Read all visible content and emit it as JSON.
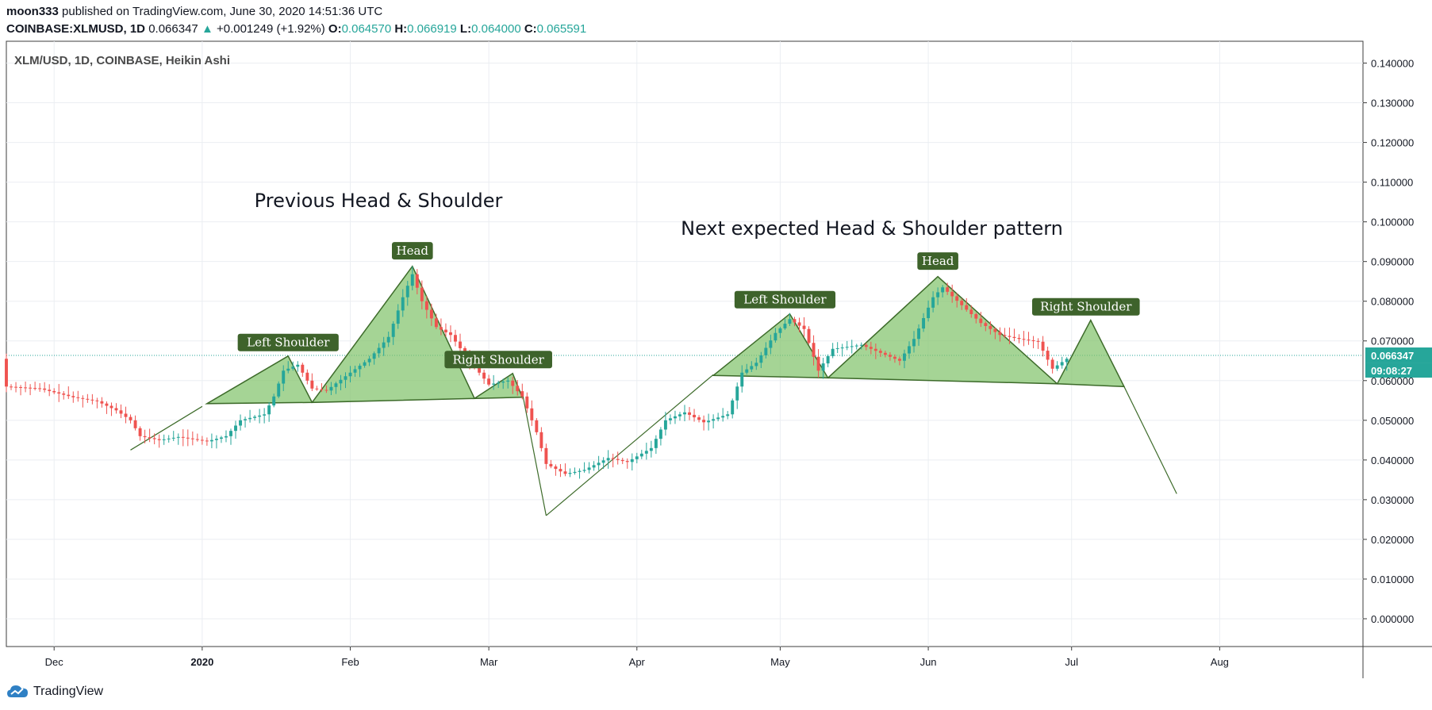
{
  "header": {
    "author": "moon333",
    "published_text": "published on TradingView.com, June 30, 2020 14:51:36 UTC",
    "symbol": "COINBASE:XLMUSD, 1D",
    "last": "0.066347",
    "change": "+0.001249 (+1.92%)",
    "o_label": "O:",
    "o": "0.064570",
    "h_label": "H:",
    "h": "0.066919",
    "l_label": "L:",
    "l": "0.064000",
    "c_label": "C:",
    "c": "0.065591"
  },
  "legend_title": "XLM/USD, 1D, COINBASE, Heikin Ashi",
  "annotations": {
    "prev_title": "Previous Head & Shoulder",
    "next_title": "Next expected Head & Shoulder pattern",
    "labels": [
      {
        "text": "Left Shoulder",
        "date": "2020-01-19",
        "price": 0.0696
      },
      {
        "text": "Head",
        "date": "2020-02-14",
        "price": 0.0927
      },
      {
        "text": "Right Shoulder",
        "date": "2020-03-03",
        "price": 0.0653
      },
      {
        "text": "Left Shoulder",
        "date": "2020-05-02",
        "price": 0.0804
      },
      {
        "text": "Head",
        "date": "2020-06-03",
        "price": 0.0901
      },
      {
        "text": "Right Shoulder",
        "date": "2020-07-04",
        "price": 0.0786
      }
    ]
  },
  "price_tag": "0.066347",
  "countdown_tag": "09:08:27",
  "brand": "TradingView",
  "colors": {
    "up": "#26a69a",
    "down": "#ef5350",
    "pattern_fill": "#82c46c",
    "pattern_stroke": "#3d6b2a",
    "label_bg": "#3e632b",
    "price_tag_bg": "#26a69a"
  },
  "chart_data": {
    "type": "candlestick",
    "style": "Heikin Ashi",
    "ylim": [
      -0.007,
      0.1455
    ],
    "y_ticks": [
      {
        "v": 0.14,
        "t": "0.140000"
      },
      {
        "v": 0.13,
        "t": "0.130000"
      },
      {
        "v": 0.12,
        "t": "0.120000"
      },
      {
        "v": 0.11,
        "t": "0.110000"
      },
      {
        "v": 0.1,
        "t": "0.100000"
      },
      {
        "v": 0.09,
        "t": "0.090000"
      },
      {
        "v": 0.08,
        "t": "0.080000"
      },
      {
        "v": 0.07,
        "t": "0.070000"
      },
      {
        "v": 0.06,
        "t": "0.060000"
      },
      {
        "v": 0.05,
        "t": "0.050000"
      },
      {
        "v": 0.04,
        "t": "0.040000"
      },
      {
        "v": 0.03,
        "t": "0.030000"
      },
      {
        "v": 0.02,
        "t": "0.020000"
      },
      {
        "v": 0.01,
        "t": "0.010000"
      },
      {
        "v": 0.0,
        "t": "0.000000"
      }
    ],
    "x_range": [
      "2019-11-21",
      "2020-08-31"
    ],
    "x_ticks": [
      {
        "date": "2019-12-01",
        "t": "Dec",
        "bold": false
      },
      {
        "date": "2020-01-01",
        "t": "2020",
        "bold": true
      },
      {
        "date": "2020-02-01",
        "t": "Feb",
        "bold": false
      },
      {
        "date": "2020-03-01",
        "t": "Mar",
        "bold": false
      },
      {
        "date": "2020-04-01",
        "t": "Apr",
        "bold": false
      },
      {
        "date": "2020-05-01",
        "t": "May",
        "bold": false
      },
      {
        "date": "2020-06-01",
        "t": "Jun",
        "bold": false
      },
      {
        "date": "2020-07-01",
        "t": "Jul",
        "bold": false
      },
      {
        "date": "2020-08-01",
        "t": "Aug",
        "bold": false
      }
    ],
    "current_price": 0.066347,
    "candle_close_path": {
      "start_date": "2019-11-21",
      "end_date": "2020-06-30",
      "points": [
        [
          "2019-11-21",
          0.0585
        ],
        [
          "2019-11-28",
          0.058
        ],
        [
          "2019-12-05",
          0.0558
        ],
        [
          "2019-12-10",
          0.0548
        ],
        [
          "2019-12-14",
          0.0525
        ],
        [
          "2019-12-17",
          0.05
        ],
        [
          "2019-12-19",
          0.046
        ],
        [
          "2019-12-23",
          0.045
        ],
        [
          "2019-12-27",
          0.0458
        ],
        [
          "2020-01-02",
          0.0447
        ],
        [
          "2020-01-06",
          0.046
        ],
        [
          "2020-01-09",
          0.05
        ],
        [
          "2020-01-14",
          0.0515
        ],
        [
          "2020-01-16",
          0.056
        ],
        [
          "2020-01-18",
          0.0625
        ],
        [
          "2020-01-21",
          0.064
        ],
        [
          "2020-01-24",
          0.058
        ],
        [
          "2020-01-27",
          0.0575
        ],
        [
          "2020-02-01",
          0.062
        ],
        [
          "2020-02-05",
          0.0655
        ],
        [
          "2020-02-09",
          0.071
        ],
        [
          "2020-02-12",
          0.081
        ],
        [
          "2020-02-14",
          0.0868
        ],
        [
          "2020-02-16",
          0.08
        ],
        [
          "2020-02-19",
          0.0735
        ],
        [
          "2020-02-22",
          0.0715
        ],
        [
          "2020-02-25",
          0.0665
        ],
        [
          "2020-03-01",
          0.059
        ],
        [
          "2020-03-05",
          0.06
        ],
        [
          "2020-03-08",
          0.056
        ],
        [
          "2020-03-11",
          0.047
        ],
        [
          "2020-03-13",
          0.039
        ],
        [
          "2020-03-17",
          0.0365
        ],
        [
          "2020-03-21",
          0.0375
        ],
        [
          "2020-03-26",
          0.0405
        ],
        [
          "2020-03-30",
          0.0395
        ],
        [
          "2020-04-04",
          0.043
        ],
        [
          "2020-04-07",
          0.05
        ],
        [
          "2020-04-11",
          0.052
        ],
        [
          "2020-04-15",
          0.0495
        ],
        [
          "2020-04-20",
          0.0515
        ],
        [
          "2020-04-23",
          0.062
        ],
        [
          "2020-04-26",
          0.0645
        ],
        [
          "2020-04-30",
          0.072
        ],
        [
          "2020-05-03",
          0.0755
        ],
        [
          "2020-05-06",
          0.073
        ],
        [
          "2020-05-09",
          0.0625
        ],
        [
          "2020-05-12",
          0.068
        ],
        [
          "2020-05-18",
          0.069
        ],
        [
          "2020-05-22",
          0.067
        ],
        [
          "2020-05-26",
          0.065
        ],
        [
          "2020-05-29",
          0.0705
        ],
        [
          "2020-06-02",
          0.081
        ],
        [
          "2020-06-04",
          0.0835
        ],
        [
          "2020-06-08",
          0.079
        ],
        [
          "2020-06-12",
          0.0745
        ],
        [
          "2020-06-16",
          0.0715
        ],
        [
          "2020-06-20",
          0.0705
        ],
        [
          "2020-06-24",
          0.0698
        ],
        [
          "2020-06-27",
          0.063
        ],
        [
          "2020-06-30",
          0.0655
        ]
      ]
    },
    "drawings": [
      {
        "type": "line",
        "pts": [
          [
            "2019-12-17",
            0.0425
          ],
          [
            "2020-01-01",
            0.0535
          ]
        ]
      },
      {
        "type": "triangle",
        "pts": [
          [
            "2020-01-02",
            0.0542
          ],
          [
            "2020-01-19",
            0.0662
          ],
          [
            "2020-01-24",
            0.0545
          ]
        ]
      },
      {
        "type": "triangle",
        "pts": [
          [
            "2020-01-24",
            0.0545
          ],
          [
            "2020-02-14",
            0.0888
          ],
          [
            "2020-02-27",
            0.0555
          ]
        ]
      },
      {
        "type": "triangle",
        "pts": [
          [
            "2020-02-27",
            0.0555
          ],
          [
            "2020-03-06",
            0.0618
          ],
          [
            "2020-03-08",
            0.0558
          ]
        ]
      },
      {
        "type": "line",
        "pts": [
          [
            "2020-03-08",
            0.057
          ],
          [
            "2020-03-13",
            0.026
          ]
        ]
      },
      {
        "type": "line",
        "pts": [
          [
            "2020-03-13",
            0.026
          ],
          [
            "2020-04-17",
            0.0615
          ]
        ]
      },
      {
        "type": "triangle",
        "pts": [
          [
            "2020-04-17",
            0.0613
          ],
          [
            "2020-05-03",
            0.0768
          ],
          [
            "2020-05-11",
            0.0607
          ]
        ]
      },
      {
        "type": "triangle",
        "pts": [
          [
            "2020-05-11",
            0.0607
          ],
          [
            "2020-06-03",
            0.0862
          ],
          [
            "2020-06-28",
            0.0592
          ]
        ]
      },
      {
        "type": "triangle",
        "pts": [
          [
            "2020-06-28",
            0.0592
          ],
          [
            "2020-07-05",
            0.0752
          ],
          [
            "2020-07-12",
            0.0585
          ]
        ]
      },
      {
        "type": "line",
        "pts": [
          [
            "2020-07-12",
            0.0585
          ],
          [
            "2020-07-23",
            0.0315
          ]
        ]
      }
    ]
  }
}
